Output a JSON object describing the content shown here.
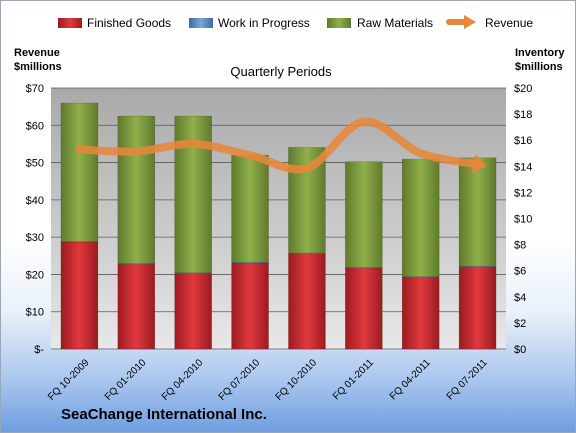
{
  "chart_data": {
    "type": "bar",
    "stacked": true,
    "title": "Quarterly Periods",
    "company": "SeaChange International Inc.",
    "left_axis_title": [
      "Revenue",
      "$millions"
    ],
    "right_axis_title": [
      "Inventory",
      "$millions"
    ],
    "categories": [
      "FQ 10-2009",
      "FQ 01-2010",
      "FQ 04-2010",
      "FQ 07-2010",
      "FQ 10-2010",
      "FQ 01-2011",
      "FQ 04-2011",
      "FQ 07-2011"
    ],
    "left_ticks": [
      "$-",
      "$10",
      "$20",
      "$30",
      "$40",
      "$50",
      "$60",
      "$70"
    ],
    "right_ticks": [
      "$0",
      "$2",
      "$4",
      "$6",
      "$8",
      "$10",
      "$12",
      "$14",
      "$16",
      "$18",
      "$20"
    ],
    "left_ylim": [
      0,
      70
    ],
    "right_ylim": [
      0,
      20
    ],
    "series": [
      {
        "name": "Finished Goods",
        "axis": "right",
        "kind": "bar",
        "color": "#c0272d",
        "values": [
          8.2,
          6.5,
          5.8,
          6.6,
          7.3,
          6.2,
          5.5,
          6.3
        ]
      },
      {
        "name": "Work in Progress",
        "axis": "right",
        "kind": "bar",
        "color": "#4f81bd",
        "values": [
          0.05,
          0.05,
          0.05,
          0.05,
          0.05,
          0.05,
          0.05,
          0.05
        ]
      },
      {
        "name": "Raw Materials",
        "axis": "right",
        "kind": "bar",
        "color": "#77933c",
        "values": [
          10.6,
          11.3,
          12.0,
          8.2,
          8.1,
          8.1,
          9.0,
          8.3
        ]
      },
      {
        "name": "Revenue",
        "axis": "left",
        "kind": "line",
        "color": "#e8863a",
        "values": [
          53.5,
          53.0,
          55.0,
          52.0,
          48.5,
          61.0,
          52.5,
          49.5
        ]
      }
    ],
    "grid": true,
    "legend_position": "top"
  }
}
